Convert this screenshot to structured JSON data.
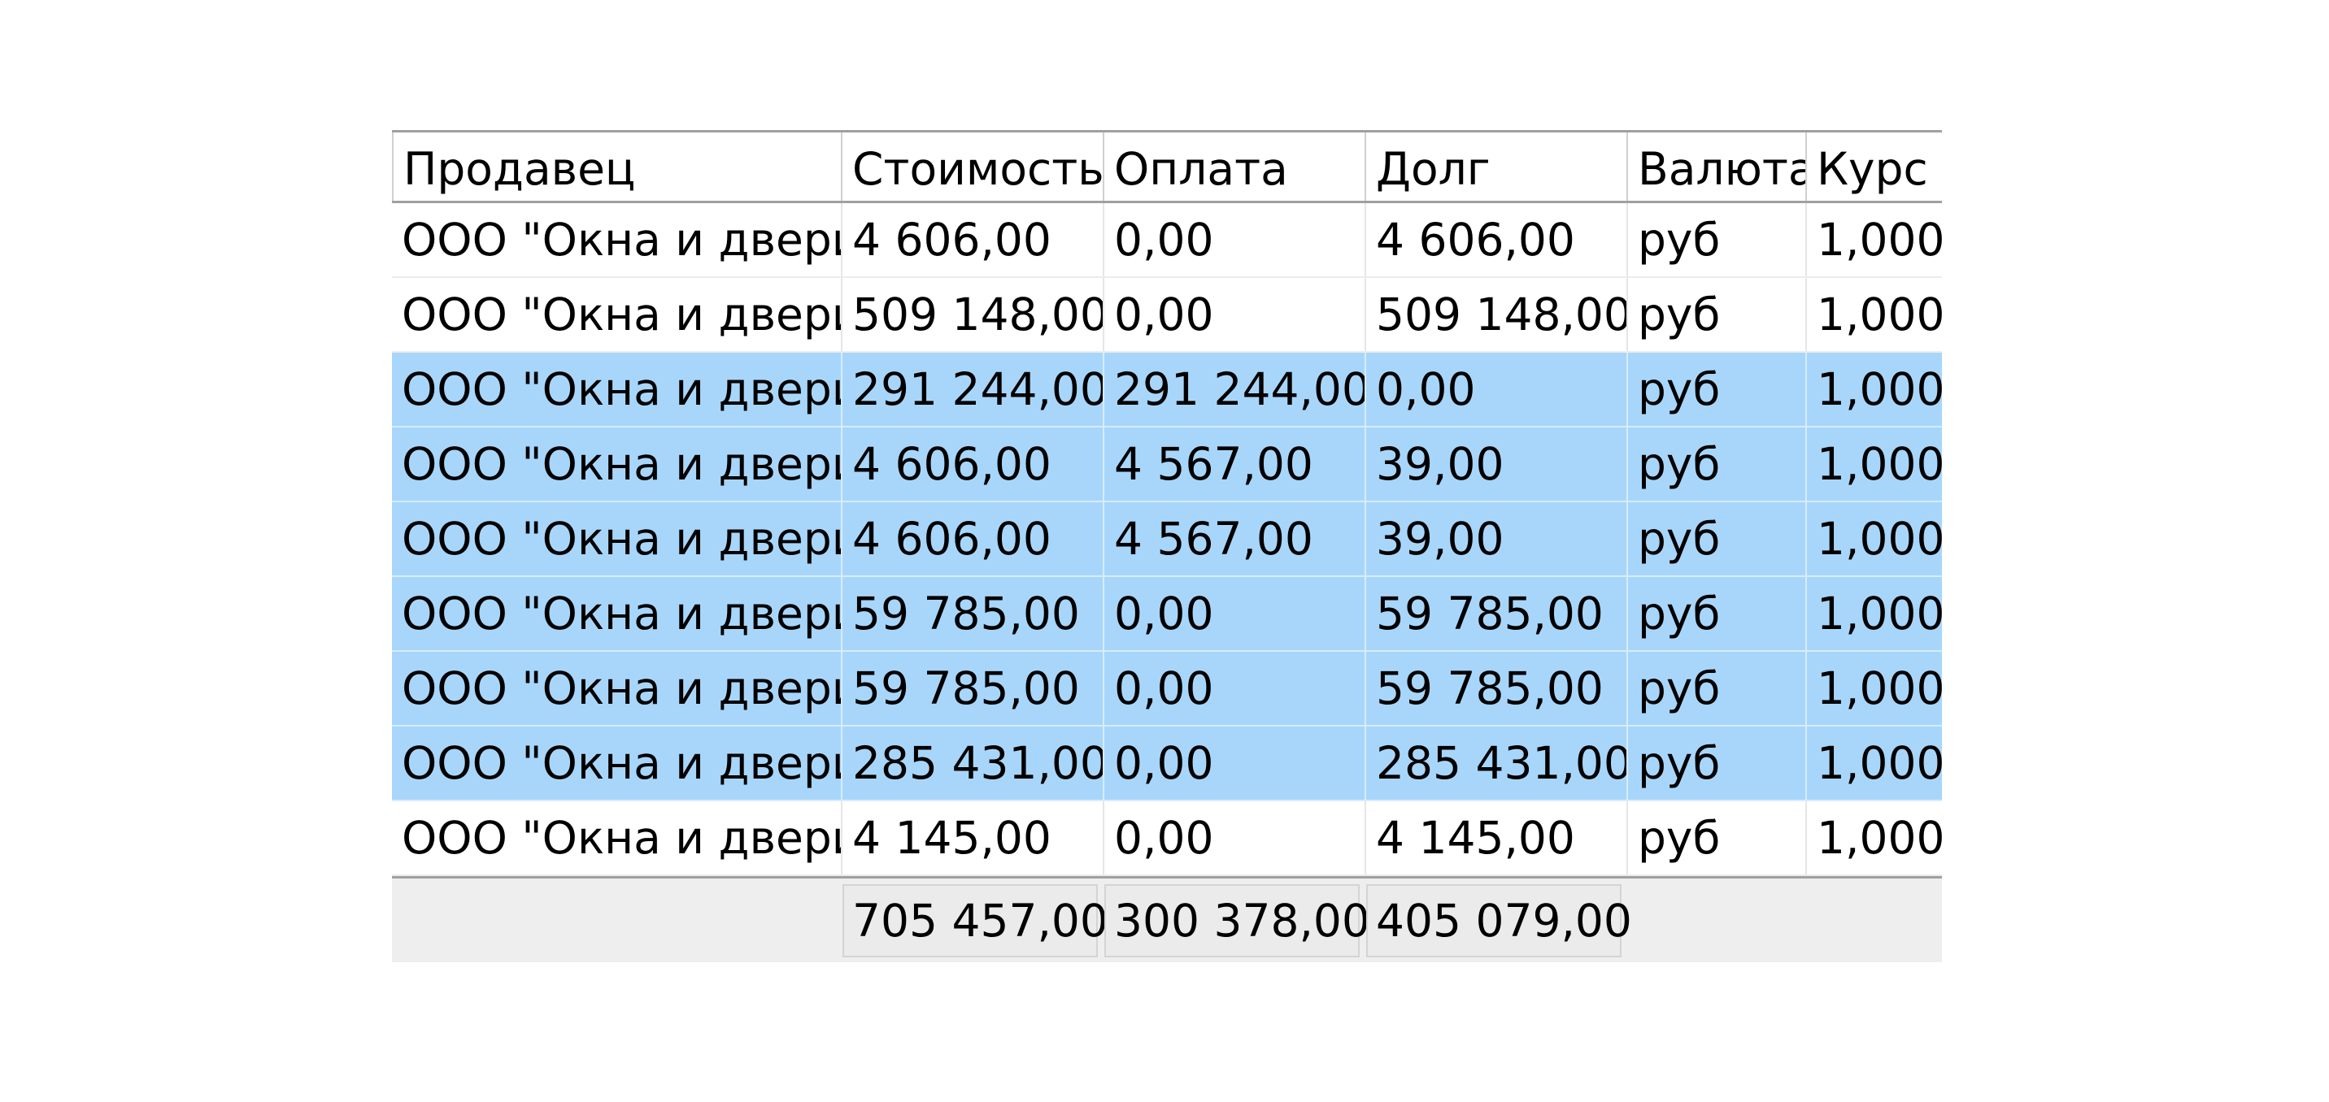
{
  "columns": [
    "Продавец",
    "Стоимость",
    "Оплата",
    "Долг",
    "Валюта",
    "Курс"
  ],
  "rows": [
    {
      "seller": "ООО \"Окна и двери\"",
      "cost": "4 606,00",
      "paid": "0,00",
      "debt": "4 606,00",
      "currency": "руб",
      "rate": "1,000",
      "selected": false
    },
    {
      "seller": "ООО \"Окна и двери\"",
      "cost": "509 148,00",
      "paid": "0,00",
      "debt": "509 148,00",
      "currency": "руб",
      "rate": "1,000",
      "selected": false
    },
    {
      "seller": "ООО \"Окна и двери\"",
      "cost": "291 244,00",
      "paid": "291 244,00",
      "debt": "0,00",
      "currency": "руб",
      "rate": "1,000",
      "selected": true
    },
    {
      "seller": "ООО \"Окна и двери\"",
      "cost": "4 606,00",
      "paid": "4 567,00",
      "debt": "39,00",
      "currency": "руб",
      "rate": "1,000",
      "selected": true
    },
    {
      "seller": "ООО \"Окна и двери\"",
      "cost": "4 606,00",
      "paid": "4 567,00",
      "debt": "39,00",
      "currency": "руб",
      "rate": "1,000",
      "selected": true
    },
    {
      "seller": "ООО \"Окна и двери\"",
      "cost": "59 785,00",
      "paid": "0,00",
      "debt": "59 785,00",
      "currency": "руб",
      "rate": "1,000",
      "selected": true
    },
    {
      "seller": "ООО \"Окна и двери\"",
      "cost": "59 785,00",
      "paid": "0,00",
      "debt": "59 785,00",
      "currency": "руб",
      "rate": "1,000",
      "selected": true
    },
    {
      "seller": "ООО \"Окна и двери\"",
      "cost": "285 431,00",
      "paid": "0,00",
      "debt": "285 431,00",
      "currency": "руб",
      "rate": "1,000",
      "selected": true
    },
    {
      "seller": "ООО \"Окна и двери\"",
      "cost": "4 145,00",
      "paid": "0,00",
      "debt": "4 145,00",
      "currency": "руб",
      "rate": "1,000",
      "selected": false
    }
  ],
  "totals": {
    "cost": "705 457,00",
    "paid": "300 378,00",
    "debt": "405 079,00"
  },
  "colors": {
    "selected_row": "#a8d6fb",
    "footer_bg": "#eeeeee"
  }
}
